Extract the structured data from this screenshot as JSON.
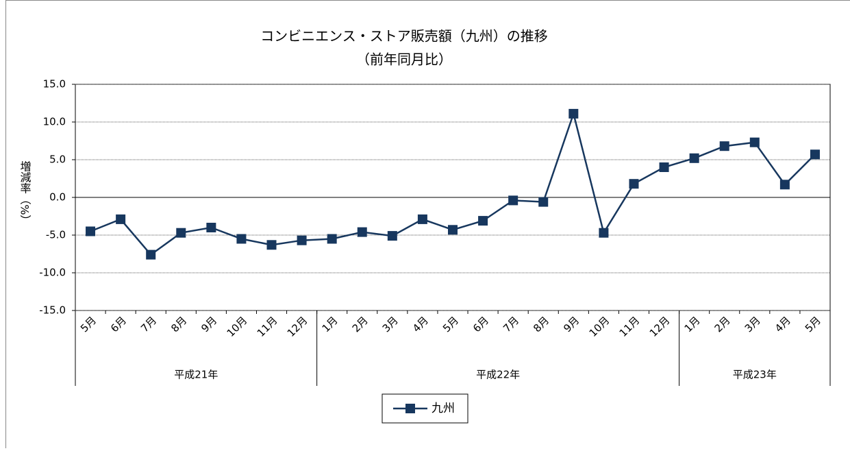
{
  "chart_data": {
    "type": "line",
    "title": "コンビニエンス・ストア販売額（九州）の推移",
    "subtitle": "（前年同月比）",
    "y_label": "増減率（%）",
    "category_groups": [
      {
        "label": "平成21年",
        "categories": [
          "5月",
          "6月",
          "7月",
          "8月",
          "9月",
          "10月",
          "11月",
          "12月"
        ]
      },
      {
        "label": "平成22年",
        "categories": [
          "1月",
          "2月",
          "3月",
          "4月",
          "5月",
          "6月",
          "7月",
          "8月",
          "9月",
          "10月",
          "11月",
          "12月"
        ]
      },
      {
        "label": "平成23年",
        "categories": [
          "1月",
          "2月",
          "3月",
          "4月",
          "5月"
        ]
      }
    ],
    "series": [
      {
        "name": "九州",
        "color": "#17375e",
        "values": [
          -4.5,
          -2.9,
          -7.6,
          -4.7,
          -4.0,
          -5.5,
          -6.3,
          -5.7,
          -5.5,
          -4.6,
          -5.1,
          -2.9,
          -4.3,
          -3.1,
          -0.4,
          -0.6,
          11.1,
          -4.7,
          1.8,
          4.0,
          5.2,
          6.8,
          7.3,
          1.7,
          5.7
        ]
      }
    ],
    "ylim": [
      -15,
      15
    ],
    "yticks": [
      {
        "value": -15,
        "label": "-15.0"
      },
      {
        "value": -10,
        "label": "-10.0"
      },
      {
        "value": -5,
        "label": "-5.0"
      },
      {
        "value": 0,
        "label": "0.0"
      },
      {
        "value": 5,
        "label": "5.0"
      },
      {
        "value": 10,
        "label": "10.0"
      },
      {
        "value": 15,
        "label": "15.0"
      }
    ],
    "grid": true,
    "legend": "bottom"
  }
}
